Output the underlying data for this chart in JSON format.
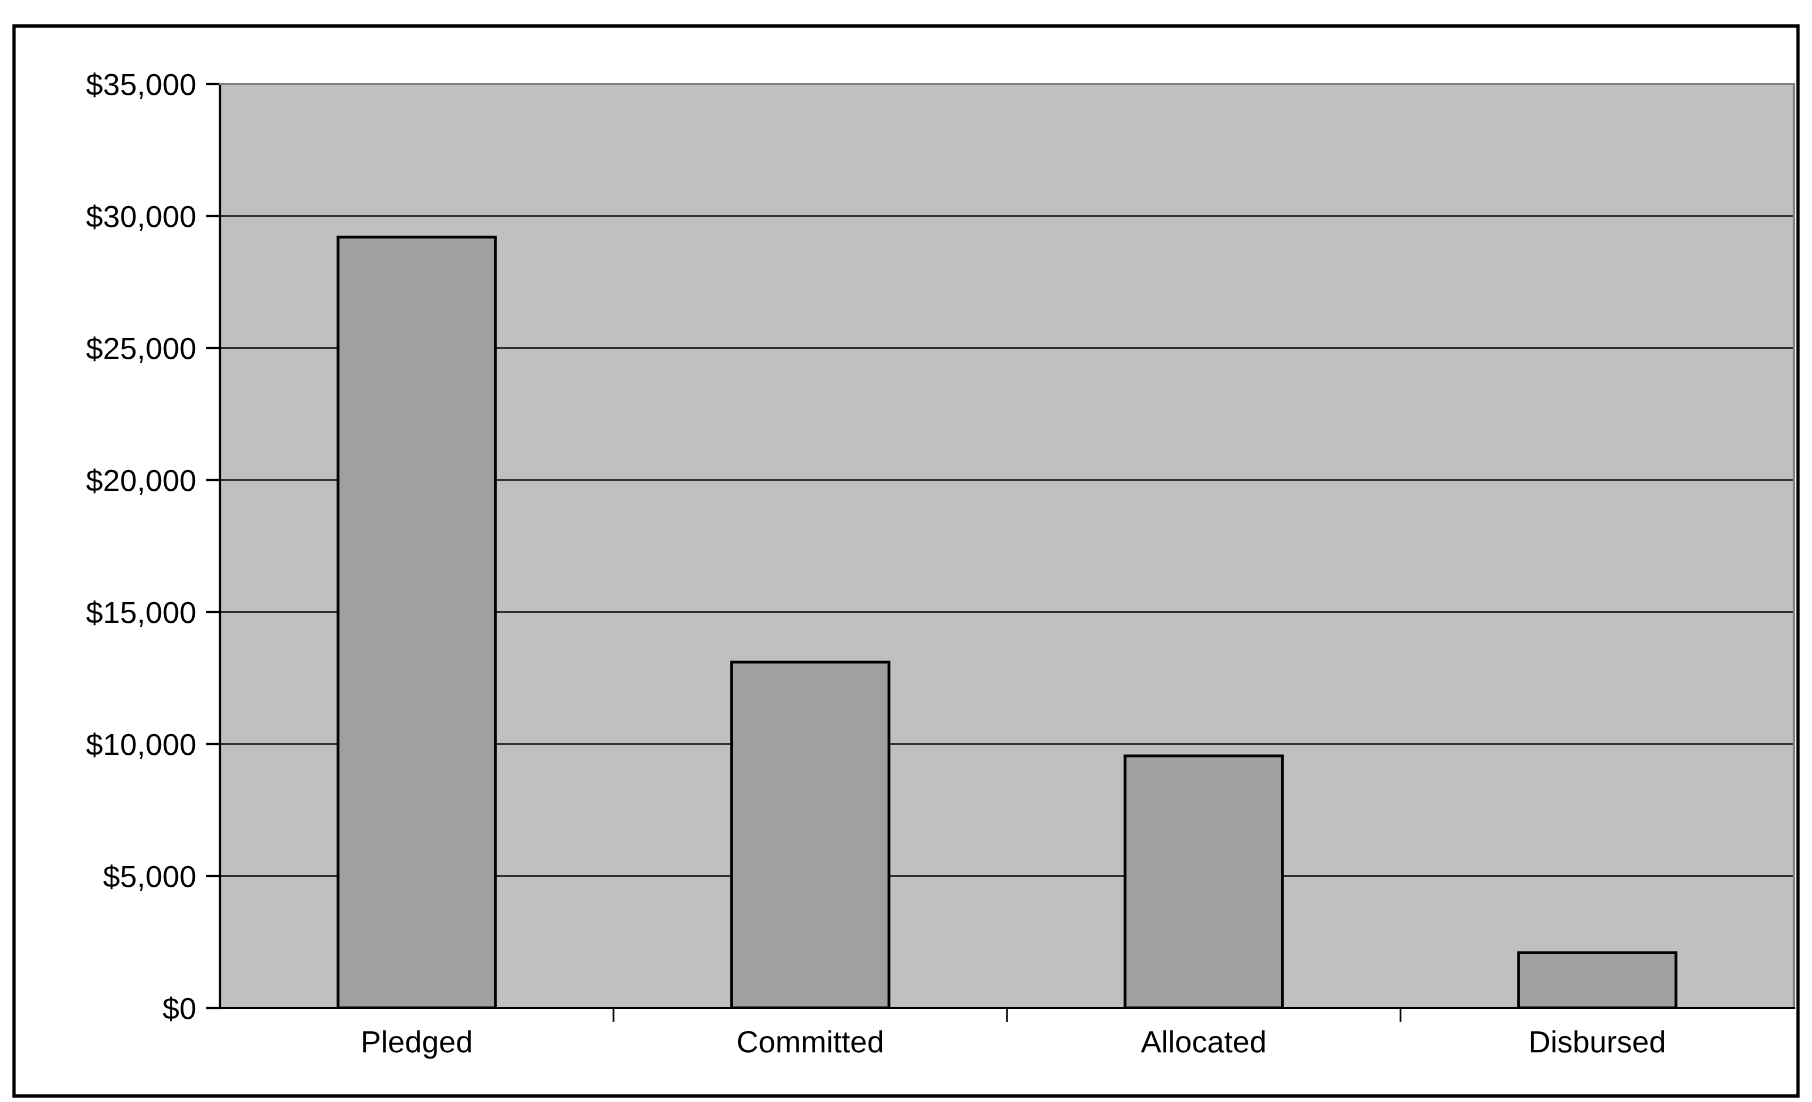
{
  "chart_data": {
    "type": "bar",
    "categories": [
      "Pledged",
      "Committed",
      "Allocated",
      "Disbursed"
    ],
    "values": [
      29200,
      13100,
      9550,
      2100
    ],
    "color": "#a0a0a0",
    "ylim": [
      0,
      35000
    ],
    "yticks": [
      {
        "value": 0,
        "label": "$0"
      },
      {
        "value": 5000,
        "label": "$5,000"
      },
      {
        "value": 10000,
        "label": "$10,000"
      },
      {
        "value": 15000,
        "label": "$15,000"
      },
      {
        "value": 20000,
        "label": "$20,000"
      },
      {
        "value": 25000,
        "label": "$25,000"
      },
      {
        "value": 30000,
        "label": "$30,000"
      },
      {
        "value": 35000,
        "label": "$35,000"
      }
    ],
    "grid": "y"
  }
}
